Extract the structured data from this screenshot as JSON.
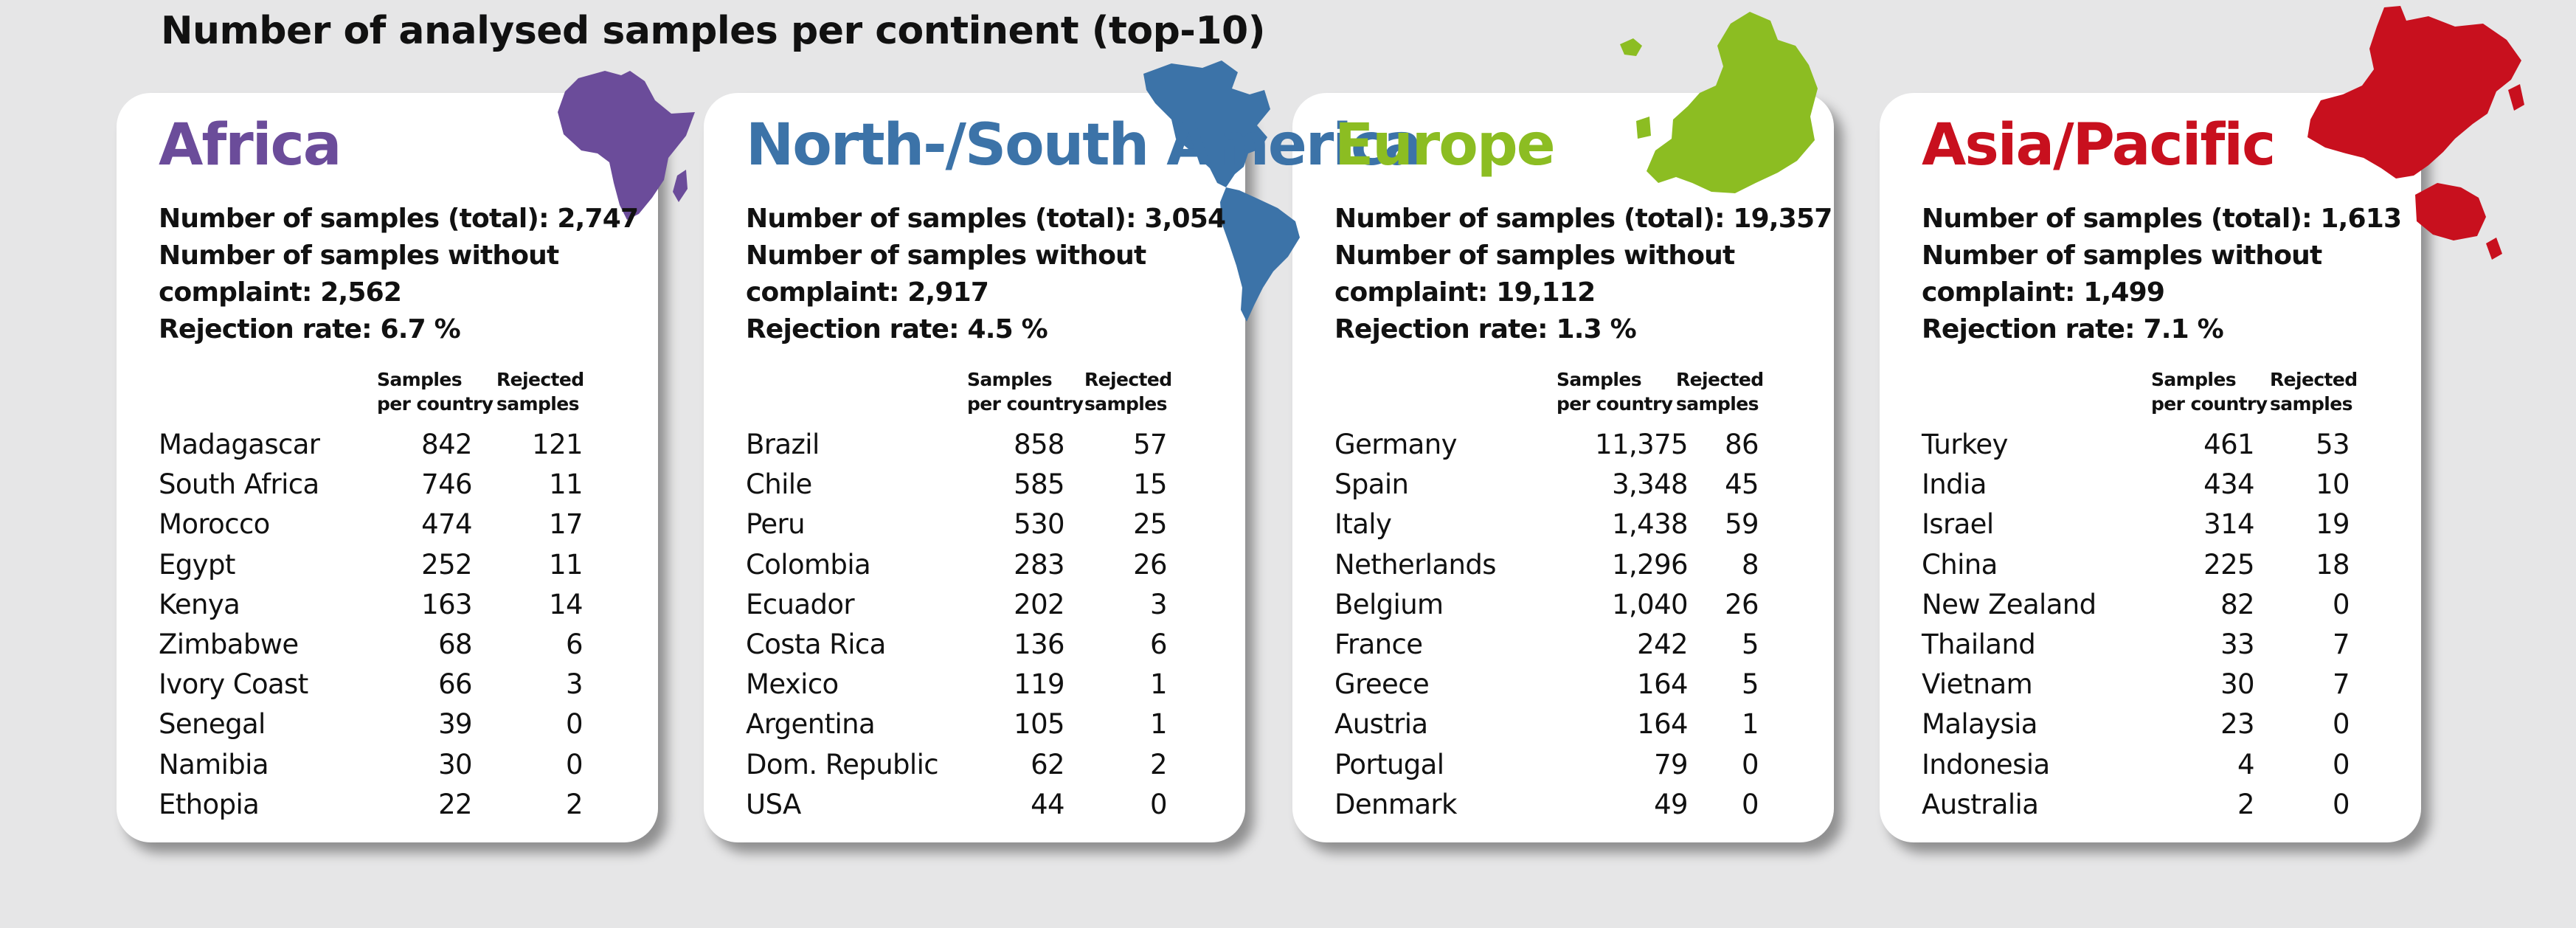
{
  "title": "Number of analysed samples per continent (top-10)",
  "column_headers": {
    "samples_line1": "Samples",
    "samples_line2": "per country",
    "rejected_line1": "Rejected",
    "rejected_line2": "samples"
  },
  "regions": [
    {
      "name": "Africa",
      "color": "#6b4c9a",
      "total": "Number of samples (total): 2,747",
      "without_line1": "Number of samples without",
      "without_line2": "complaint: 2,562",
      "rejection": "Rejection rate: 6.7 %",
      "rows": [
        {
          "country": "Madagascar",
          "samples": "842",
          "rejected": "121"
        },
        {
          "country": "South Africa",
          "samples": "746",
          "rejected": "11"
        },
        {
          "country": "Morocco",
          "samples": "474",
          "rejected": "17"
        },
        {
          "country": "Egypt",
          "samples": "252",
          "rejected": "11"
        },
        {
          "country": "Kenya",
          "samples": "163",
          "rejected": "14"
        },
        {
          "country": "Zimbabwe",
          "samples": "68",
          "rejected": "6"
        },
        {
          "country": "Ivory Coast",
          "samples": "66",
          "rejected": "3"
        },
        {
          "country": "Senegal",
          "samples": "39",
          "rejected": "0"
        },
        {
          "country": "Namibia",
          "samples": "30",
          "rejected": "0"
        },
        {
          "country": "Ethopia",
          "samples": "22",
          "rejected": "2"
        }
      ]
    },
    {
      "name": "North-/South America",
      "color": "#3c73a8",
      "total": "Number of samples (total): 3,054",
      "without_line1": "Number of samples without",
      "without_line2": "complaint: 2,917",
      "rejection": "Rejection rate: 4.5 %",
      "rows": [
        {
          "country": "Brazil",
          "samples": "858",
          "rejected": "57"
        },
        {
          "country": "Chile",
          "samples": "585",
          "rejected": "15"
        },
        {
          "country": "Peru",
          "samples": "530",
          "rejected": "25"
        },
        {
          "country": "Colombia",
          "samples": "283",
          "rejected": "26"
        },
        {
          "country": "Ecuador",
          "samples": "202",
          "rejected": "3"
        },
        {
          "country": "Costa Rica",
          "samples": "136",
          "rejected": "6"
        },
        {
          "country": "Mexico",
          "samples": "119",
          "rejected": "1"
        },
        {
          "country": "Argentina",
          "samples": "105",
          "rejected": "1"
        },
        {
          "country": "Dom. Republic",
          "samples": "62",
          "rejected": "2"
        },
        {
          "country": "USA",
          "samples": "44",
          "rejected": "0"
        }
      ]
    },
    {
      "name": "Europe",
      "color": "#8cbd22",
      "total": "Number of samples (total): 19,357",
      "without_line1": "Number of samples without",
      "without_line2": "complaint: 19,112",
      "rejection": "Rejection rate: 1.3 %",
      "rows": [
        {
          "country": "Germany",
          "samples": "11,375",
          "rejected": "86"
        },
        {
          "country": "Spain",
          "samples": "3,348",
          "rejected": "45"
        },
        {
          "country": "Italy",
          "samples": "1,438",
          "rejected": "59"
        },
        {
          "country": "Netherlands",
          "samples": "1,296",
          "rejected": "8"
        },
        {
          "country": "Belgium",
          "samples": "1,040",
          "rejected": "26"
        },
        {
          "country": "France",
          "samples": "242",
          "rejected": "5"
        },
        {
          "country": "Greece",
          "samples": "164",
          "rejected": "5"
        },
        {
          "country": "Austria",
          "samples": "164",
          "rejected": "1"
        },
        {
          "country": "Portugal",
          "samples": "79",
          "rejected": "0"
        },
        {
          "country": "Denmark",
          "samples": "49",
          "rejected": "0"
        }
      ]
    },
    {
      "name": "Asia/Pacific",
      "color": "#c8101e",
      "total": "Number of samples (total): 1,613",
      "without_line1": "Number of samples without",
      "without_line2": "complaint: 1,499",
      "rejection": "Rejection rate: 7.1 %",
      "rows": [
        {
          "country": "Turkey",
          "samples": "461",
          "rejected": "53"
        },
        {
          "country": "India",
          "samples": "434",
          "rejected": "10"
        },
        {
          "country": "Israel",
          "samples": "314",
          "rejected": "19"
        },
        {
          "country": "China",
          "samples": "225",
          "rejected": "18"
        },
        {
          "country": "New Zealand",
          "samples": "82",
          "rejected": "0"
        },
        {
          "country": "Thailand",
          "samples": "33",
          "rejected": "7"
        },
        {
          "country": "Vietnam",
          "samples": "30",
          "rejected": "7"
        },
        {
          "country": "Malaysia",
          "samples": "23",
          "rejected": "0"
        },
        {
          "country": "Indonesia",
          "samples": "4",
          "rejected": "0"
        },
        {
          "country": "Australia",
          "samples": "2",
          "rejected": "0"
        }
      ]
    }
  ]
}
